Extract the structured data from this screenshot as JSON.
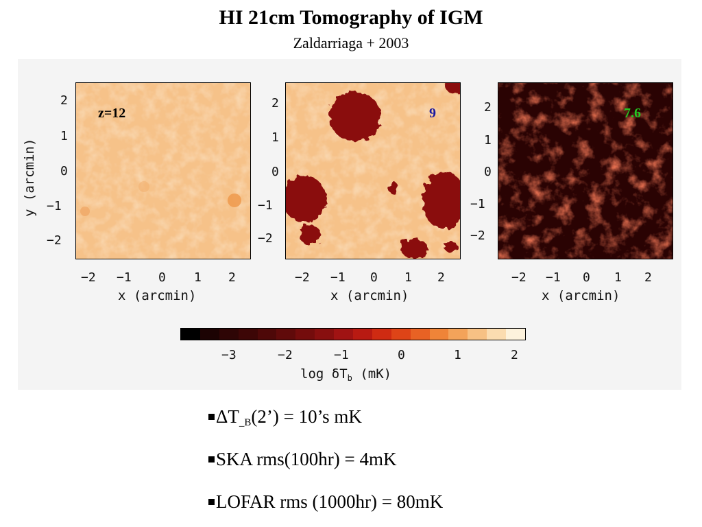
{
  "title": "HI 21cm Tomography of IGM",
  "subtitle": "Zaldarriaga + 2003",
  "panels": [
    {
      "label": "z=12",
      "label_color": "#000000"
    },
    {
      "label": "9",
      "label_color": "#1a1aa0"
    },
    {
      "label": "7.6",
      "label_color": "#22c922"
    }
  ],
  "axes": {
    "xlabel": "x (arcmin)",
    "ylabel": "y (arcmin)",
    "x_ticks": [
      "−2",
      "−1",
      "0",
      "1",
      "2"
    ],
    "y_ticks": [
      "2",
      "1",
      "0",
      "−1",
      "−2"
    ]
  },
  "colorbar": {
    "ticks": [
      "−3",
      "−2",
      "−1",
      "0",
      "1",
      "2"
    ],
    "label": "log δT",
    "label_sub": "b",
    "label_unit": " (mK)",
    "colors": [
      "#000000",
      "#1c0303",
      "#2e0505",
      "#3d0606",
      "#4e0808",
      "#600a0a",
      "#740c0c",
      "#880f0f",
      "#a01313",
      "#b81a12",
      "#cf2b12",
      "#de4417",
      "#e86224",
      "#ef8438",
      "#f3a35a",
      "#f7c184",
      "#fbdcb0",
      "#fdf2dc"
    ]
  },
  "bullets": [
    {
      "pre": "ΔT",
      "sub": "_B",
      "post": "(2’) = 10’s mK"
    },
    {
      "pre": "SKA rms(100hr) = 4mK",
      "sub": "",
      "post": ""
    },
    {
      "pre": "LOFAR rms (1000hr) = 80mK",
      "sub": "",
      "post": ""
    }
  ]
}
